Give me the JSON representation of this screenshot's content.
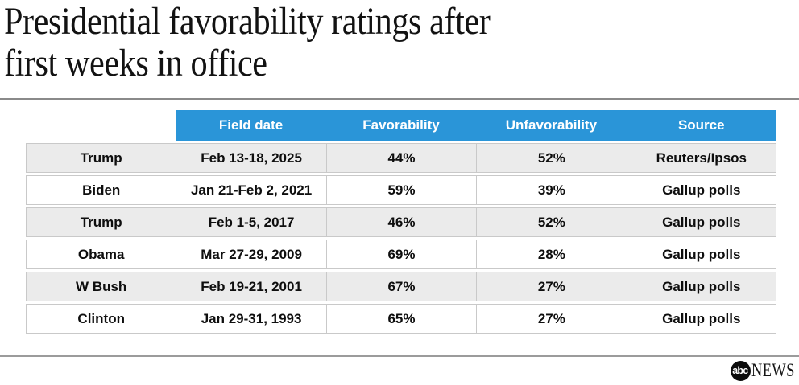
{
  "header": {
    "title": "Presidential favorability ratings after\nfirst weeks in office"
  },
  "table": {
    "columns": [
      "",
      "Field date",
      "Favorability",
      "Unfavorability",
      "Source"
    ],
    "rows": [
      {
        "president": "Trump",
        "field_date": "Feb 13-18, 2025",
        "favorability": "44%",
        "unfavorability": "52%",
        "source": "Reuters/Ipsos"
      },
      {
        "president": "Biden",
        "field_date": "Jan 21-Feb 2, 2021",
        "favorability": "59%",
        "unfavorability": "39%",
        "source": "Gallup polls"
      },
      {
        "president": "Trump",
        "field_date": "Feb 1-5, 2017",
        "favorability": "46%",
        "unfavorability": "52%",
        "source": "Gallup polls"
      },
      {
        "president": "Obama",
        "field_date": "Mar 27-29, 2009",
        "favorability": "69%",
        "unfavorability": "28%",
        "source": "Gallup polls"
      },
      {
        "president": "W Bush",
        "field_date": "Feb 19-21, 2001",
        "favorability": "67%",
        "unfavorability": "27%",
        "source": "Gallup polls"
      },
      {
        "president": "Clinton",
        "field_date": "Jan 29-31, 1993",
        "favorability": "65%",
        "unfavorability": "27%",
        "source": "Gallup polls"
      }
    ]
  },
  "chart_data": {
    "type": "table",
    "title": "Presidential favorability ratings after first weeks in office",
    "columns": [
      "",
      "Field date",
      "Favorability",
      "Unfavorability",
      "Source"
    ],
    "rows": [
      [
        "Trump",
        "Feb 13-18, 2025",
        "44%",
        "52%",
        "Reuters/Ipsos"
      ],
      [
        "Biden",
        "Jan 21-Feb 2, 2021",
        "59%",
        "39%",
        "Gallup polls"
      ],
      [
        "Trump",
        "Feb 1-5, 2017",
        "46%",
        "52%",
        "Gallup polls"
      ],
      [
        "Obama",
        "Mar 27-29, 2009",
        "69%",
        "28%",
        "Gallup polls"
      ],
      [
        "W Bush",
        "Feb 19-21, 2001",
        "67%",
        "27%",
        "Gallup polls"
      ],
      [
        "Clinton",
        "Jan 29-31, 1993",
        "65%",
        "27%",
        "Gallup polls"
      ]
    ],
    "favorability_values": [
      44,
      59,
      46,
      69,
      67,
      65
    ],
    "unfavorability_values": [
      52,
      39,
      52,
      28,
      27,
      27
    ]
  },
  "footer": {
    "logo_circle_text": "abc",
    "logo_wordmark": "NEWS"
  },
  "colors": {
    "header_blue": "#2a95d8",
    "row_alt_gray": "#ebebeb",
    "cell_border": "#c9c9c9",
    "title_text": "#121212",
    "divider_gray": "#8a8a8a"
  }
}
